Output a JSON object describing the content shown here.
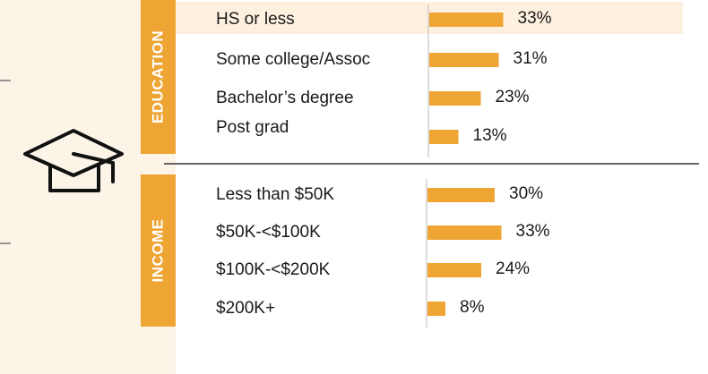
{
  "chart_data": [
    {
      "type": "bar",
      "orientation": "horizontal",
      "title": "EDUCATION",
      "color": "#eea534",
      "categories": [
        "HS or less",
        "Some college/Assoc",
        "Bachelor’s degree",
        "Post grad"
      ],
      "values": [
        33,
        31,
        23,
        13
      ],
      "value_labels": [
        "33%",
        "31%",
        "23%",
        "13%"
      ]
    },
    {
      "type": "bar",
      "orientation": "horizontal",
      "title": "INCOME",
      "color": "#eea534",
      "categories": [
        "Less than $50K",
        "$50K-<$100K",
        "$100K-<$200K",
        "$200K+"
      ],
      "values": [
        30,
        33,
        24,
        8
      ],
      "value_labels": [
        "30%",
        "33%",
        "24%",
        "8%"
      ]
    }
  ]
}
